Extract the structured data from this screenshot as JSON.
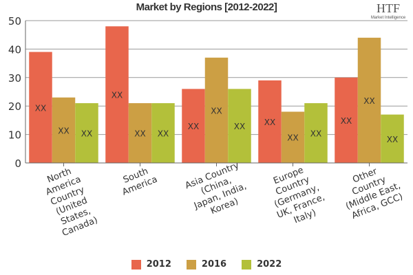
{
  "chart_data": {
    "type": "bar",
    "title": "Market by Regions [2012-2022]",
    "categories": [
      [
        "North",
        "America",
        "Country",
        "(United",
        "States,",
        "Canada)"
      ],
      [
        "South",
        "America"
      ],
      [
        "Asia Country",
        "(China,",
        "Japan, India,",
        "Korea)"
      ],
      [
        "Europe",
        "Country",
        "(Germany,",
        "UK, France,",
        "Italy)"
      ],
      [
        "Other",
        "Country",
        "(Middle East,",
        "Africa, GCC)"
      ]
    ],
    "series": [
      {
        "name": "2012",
        "color": "#e8664c",
        "values": [
          39,
          48,
          26,
          29,
          30
        ]
      },
      {
        "name": "2016",
        "color": "#cc9f44",
        "values": [
          23,
          21,
          37,
          18,
          44
        ]
      },
      {
        "name": "2022",
        "color": "#b3c03a",
        "values": [
          21,
          21,
          26,
          21,
          17
        ]
      }
    ],
    "data_label": "XX",
    "ylim": [
      0,
      50
    ],
    "yticks": [
      0,
      10,
      20,
      30,
      40,
      50
    ],
    "grid": true,
    "legend": "bottom"
  },
  "logo": {
    "text": "HTF",
    "subtext": "Market Intelligence"
  }
}
